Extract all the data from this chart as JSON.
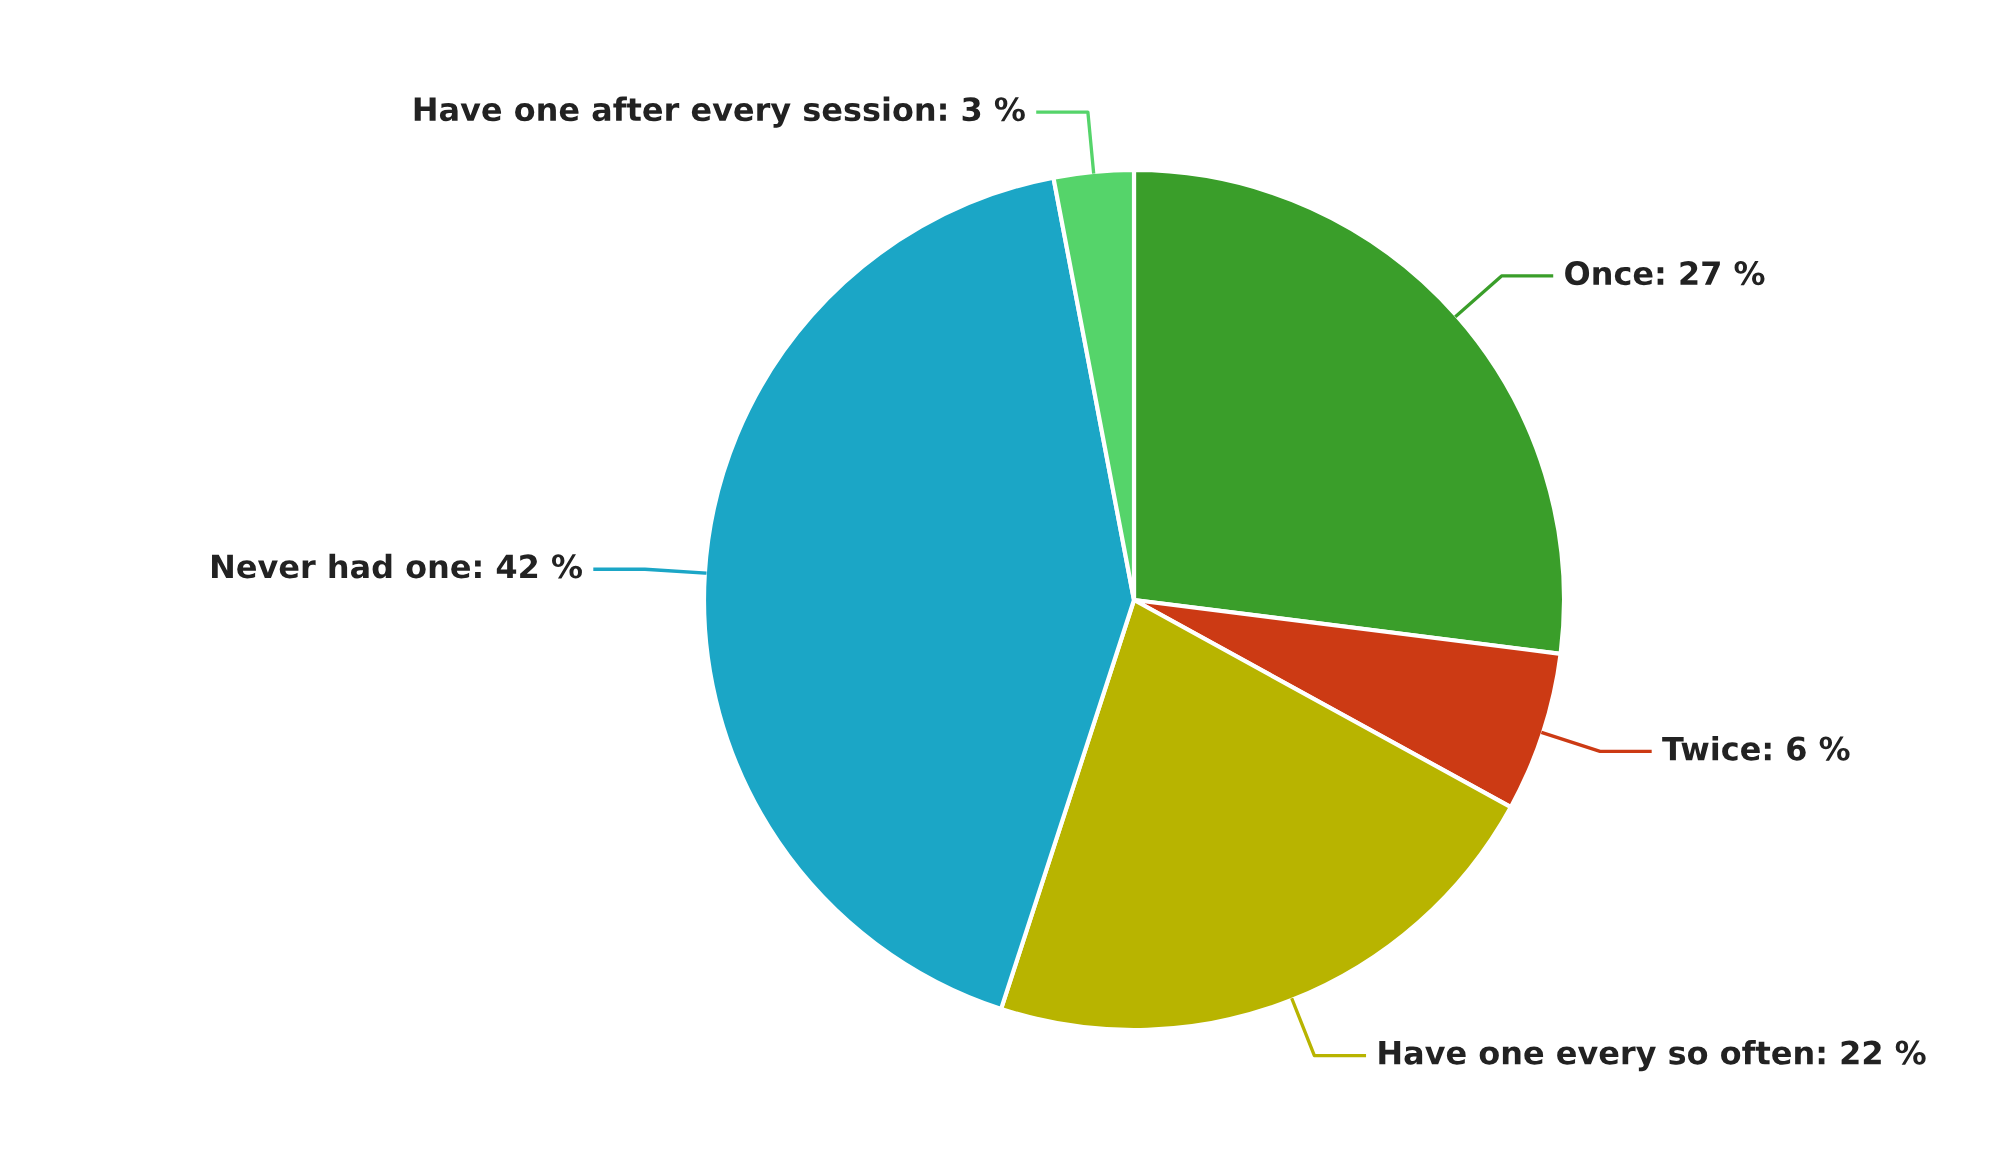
{
  "chart_data": {
    "type": "pie",
    "categories": [
      "Once",
      "Twice",
      "Have one every so often",
      "Never had one",
      "Have one after every session"
    ],
    "values": [
      27,
      6,
      22,
      42,
      3
    ],
    "colors": [
      "#3a9e2a",
      "#cc3a14",
      "#b8b400",
      "#1ba6c6",
      "#55d46a"
    ],
    "value_labels": [
      "27 %",
      "6 %",
      "22 %",
      "42 %",
      "3 %"
    ],
    "legend": false
  }
}
